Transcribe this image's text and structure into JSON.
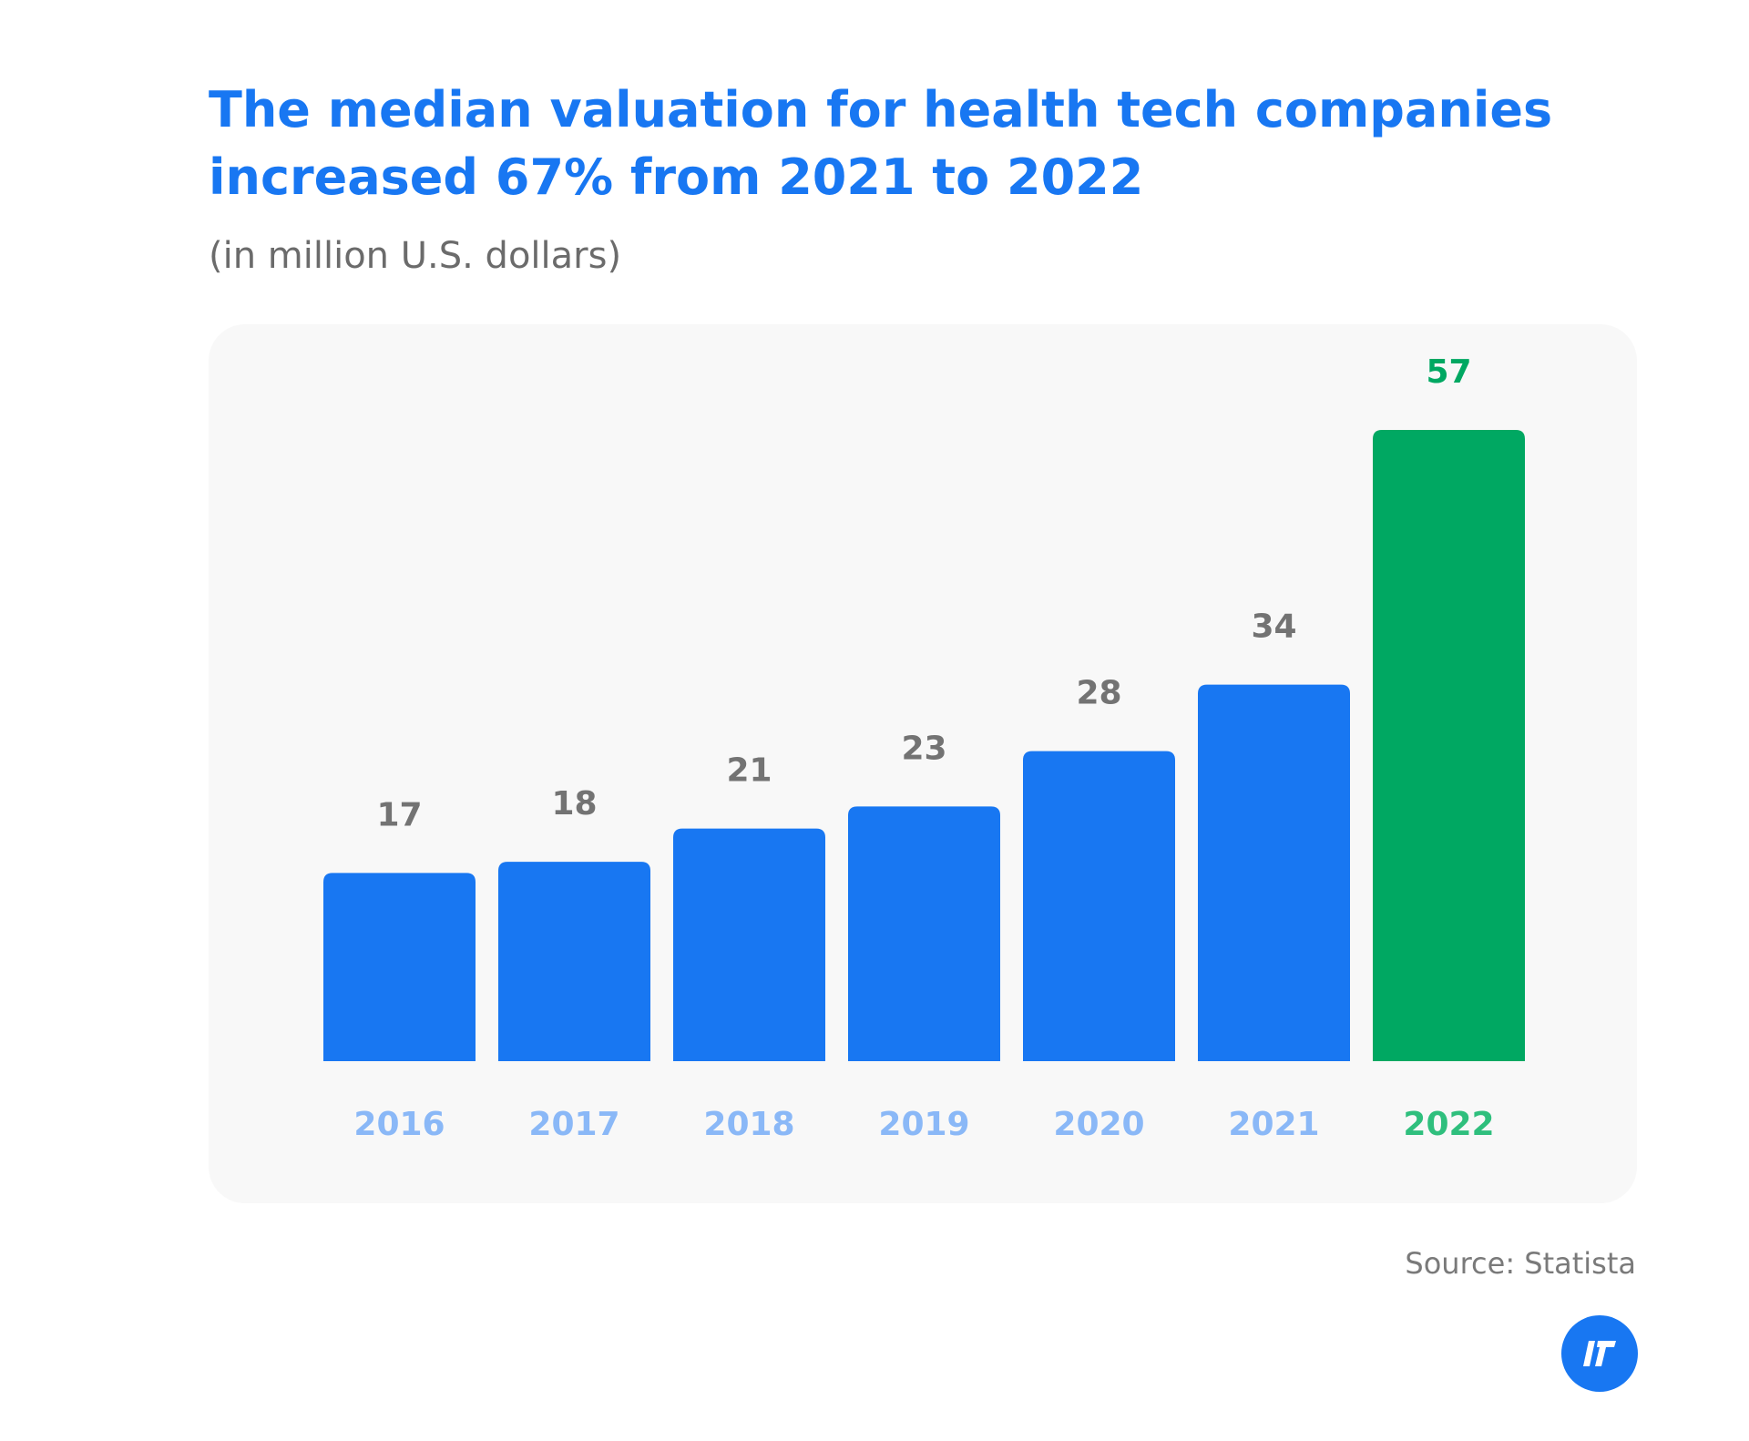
{
  "chart_data": {
    "type": "bar",
    "title": "The median valuation for health tech companies increased 67% from 2021 to 2022",
    "subtitle": "(in million U.S. dollars)",
    "categories": [
      "2016",
      "2017",
      "2018",
      "2019",
      "2020",
      "2021",
      "2022"
    ],
    "values": [
      17,
      18,
      21,
      23,
      28,
      34,
      57
    ],
    "data_labels": [
      "17",
      "18",
      "21",
      "23",
      "28",
      "34",
      "57"
    ],
    "xlabel": "",
    "ylabel": "",
    "ylim": [
      0,
      57
    ],
    "grid": false,
    "highlight_index": 6,
    "colors": {
      "bar": "#1877f2",
      "highlight_bar": "#00a862",
      "value_label": "#737373",
      "highlight_value_label": "#00a862",
      "category_label": "#8ab8f7",
      "highlight_category_label": "#2fbf7d"
    }
  },
  "source": "Source: Statista",
  "logo": {
    "icon": "brand-logo-icon",
    "color": "#1877f2"
  }
}
